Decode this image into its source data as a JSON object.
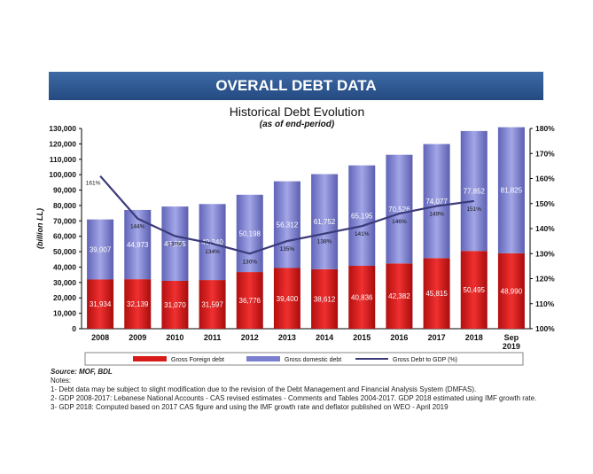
{
  "banner": {
    "title": "OVERALL DEBT DATA"
  },
  "chart_data": {
    "type": "bar",
    "title": "Historical Debt Evolution",
    "subtitle": "(as of end-period)",
    "ylabel": "(billion LL)",
    "categories": [
      "2008",
      "2009",
      "2010",
      "2011",
      "2012",
      "2013",
      "2014",
      "2015",
      "2016",
      "2017",
      "2018",
      "Sep 2019"
    ],
    "series": [
      {
        "name": "Gross  Foreign debt",
        "type": "bar",
        "stack": "debt",
        "color": "#d81a1a",
        "values": [
          31934,
          32139,
          31070,
          31597,
          36776,
          39400,
          38612,
          40836,
          42382,
          45815,
          50495,
          48990
        ]
      },
      {
        "name": "Gross domestic debt",
        "type": "bar",
        "stack": "debt",
        "color": "#7b7fd0",
        "values": [
          39007,
          44973,
          48255,
          49340,
          50198,
          56312,
          61752,
          65195,
          70526,
          74077,
          77852,
          81825
        ]
      },
      {
        "name": "Gross  Debt to GDP (%)",
        "type": "line",
        "axis": "right",
        "color": "#3a3a7a",
        "values": [
          161,
          144,
          137,
          134,
          130,
          135,
          138,
          141,
          146,
          149,
          151,
          null
        ]
      }
    ],
    "data_labels": {
      "foreign": [
        "31,934",
        "32,139",
        "31,070",
        "31,597",
        "36,776",
        "39,400",
        "38,612",
        "40,836",
        "42,382",
        "45,815",
        "50,495",
        "48,990"
      ],
      "domestic": [
        "39,007",
        "44,973",
        "48,255",
        "49,340",
        "50,198",
        "56,312",
        "61,752",
        "65,195",
        "70,526",
        "74,077",
        "77,852",
        "81,825"
      ],
      "ratio": [
        "161%",
        "144%",
        "137%",
        "134%",
        "130%",
        "135%",
        "138%",
        "141%",
        "146%",
        "149%",
        "151%",
        ""
      ]
    },
    "ylim": [
      0,
      130000
    ],
    "y_ticks": [
      "0",
      "10,000",
      "20,000",
      "30,000",
      "40,000",
      "50,000",
      "60,000",
      "70,000",
      "80,000",
      "90,000",
      "100,000",
      "110,000",
      "120,000",
      "130,000"
    ],
    "y2lim": [
      100,
      180
    ],
    "y2_ticks": [
      "100%",
      "110%",
      "120%",
      "130%",
      "140%",
      "150%",
      "160%",
      "170%",
      "180%"
    ],
    "grid": false,
    "legend_position": "bottom"
  },
  "notes": {
    "source": "Source: MOF, BDL",
    "heading": "Notes:",
    "lines": [
      "1- Debt data may be subject to slight modification due to the revision of the Debt Management and Financial Analysis System (DMFAS).",
      "2- GDP 2008-2017: Lebanese National Accounts - CAS revised estimates - Comments and Tables 2004-2017. GDP 2018 estimated using IMF growth rate.",
      "3- GDP 2018: Computed based on 2017 CAS figure and using the IMF growth rate and deflator published on WEO - April 2019"
    ]
  }
}
